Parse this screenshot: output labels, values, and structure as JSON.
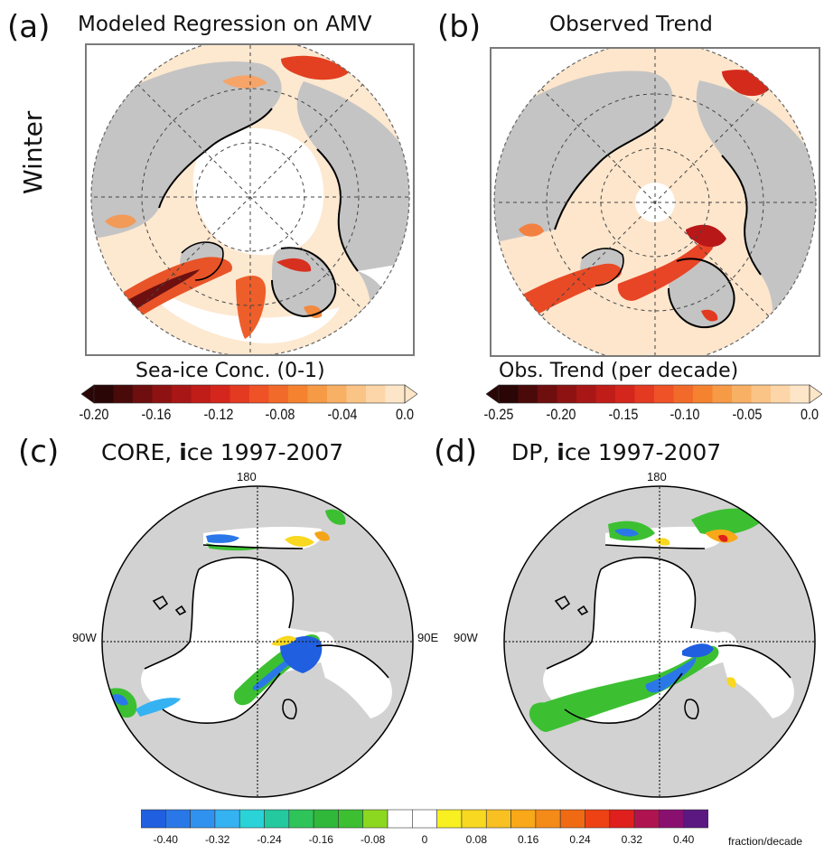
{
  "panels": {
    "a": {
      "letter": "(a)",
      "title": "Modeled Regression on AMV",
      "row_label": "Winter"
    },
    "b": {
      "letter": "(b)",
      "title": "Observed Trend"
    },
    "c": {
      "letter": "(c)",
      "title_pre": "CORE, ",
      "title_bold": "i",
      "title_post": "ce 1997-2007"
    },
    "d": {
      "letter": "(d)",
      "title_pre": "DP, ",
      "title_bold": "i",
      "title_post": "ce 1997-2007"
    }
  },
  "longitude_labels": {
    "top": "180",
    "left": "90W",
    "right": "90E"
  },
  "colorbars": {
    "a": {
      "title": "Sea-ice Conc. (0-1)",
      "ticks": [
        "-0.20",
        "-0.16",
        "-0.12",
        "-0.08",
        "-0.04",
        "0.0"
      ],
      "colors": [
        "#2a0606",
        "#4a0a0a",
        "#6e0e0e",
        "#8e1212",
        "#a81616",
        "#c01c18",
        "#d4261c",
        "#e43a22",
        "#ee5226",
        "#f26a2a",
        "#f4822e",
        "#f69a46",
        "#f8b064",
        "#fac486",
        "#fcd6a8",
        "#fde6c8"
      ]
    },
    "b": {
      "title": "Obs. Trend (per decade)",
      "ticks": [
        "-0.25",
        "-0.20",
        "-0.15",
        "-0.10",
        "-0.05",
        "0.0"
      ],
      "colors": [
        "#2a0606",
        "#4a0a0a",
        "#6e0e0e",
        "#8e1212",
        "#a81616",
        "#c01c18",
        "#d4261c",
        "#e43a22",
        "#ee5226",
        "#f26a2a",
        "#f4822e",
        "#f69a46",
        "#f8b064",
        "#fac486",
        "#fcd6a8",
        "#fde6c8"
      ]
    },
    "bottom": {
      "ticks": [
        "-0.40",
        "-0.32",
        "-0.24",
        "-0.16",
        "-0.08",
        "0",
        "0.08",
        "0.16",
        "0.24",
        "0.32",
        "0.40"
      ],
      "unit": "fraction/decade",
      "colors": [
        "#1f5fe0",
        "#2a78e8",
        "#2f92ee",
        "#35b2f2",
        "#2ad3d8",
        "#25c9a0",
        "#2ec45a",
        "#30b83a",
        "#3cc032",
        "#8cd820",
        "#ffffff",
        "#ffffff",
        "#f8f020",
        "#f8d820",
        "#f8c020",
        "#f8a818",
        "#f48a18",
        "#f06a14",
        "#ee4214",
        "#e0201c",
        "#b01450",
        "#8a1070",
        "#5a1880"
      ]
    }
  }
}
